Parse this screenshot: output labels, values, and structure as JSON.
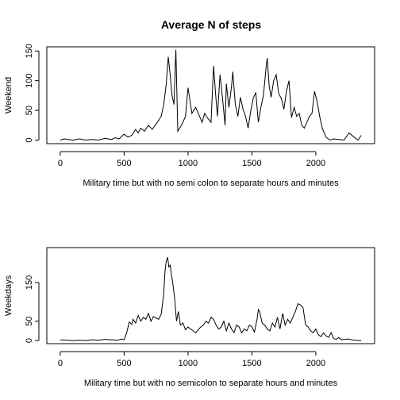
{
  "title": "Average N of steps",
  "chart_data": [
    {
      "type": "line",
      "ylabel": "Weekend",
      "xlabel": "Military time but with no semi colon to separate hours and minutes",
      "xlim": [
        -105,
        2460
      ],
      "ylim": [
        -6,
        157
      ],
      "x_ticks": [
        0,
        500,
        1000,
        1500,
        2000
      ],
      "y_ticks": [
        0,
        50,
        100,
        150
      ],
      "grid": false,
      "series": [
        {
          "x": [
            0,
            30,
            60,
            100,
            150,
            200,
            250,
            300,
            350,
            400,
            430,
            460,
            500,
            530,
            560,
            590,
            610,
            630,
            660,
            690,
            720,
            760,
            790,
            810,
            830,
            845,
            860,
            875,
            890,
            905,
            920,
            940,
            960,
            980,
            1000,
            1030,
            1060,
            1090,
            1110,
            1130,
            1150,
            1180,
            1200,
            1215,
            1230,
            1250,
            1270,
            1290,
            1300,
            1320,
            1340,
            1350,
            1370,
            1390,
            1410,
            1430,
            1450,
            1470,
            1490,
            1510,
            1530,
            1550,
            1570,
            1590,
            1610,
            1620,
            1635,
            1650,
            1670,
            1690,
            1710,
            1730,
            1750,
            1770,
            1790,
            1810,
            1830,
            1850,
            1870,
            1890,
            1910,
            1930,
            1950,
            1970,
            1990,
            2010,
            2030,
            2050,
            2080,
            2110,
            2140,
            2180,
            2220,
            2260,
            2300,
            2330,
            2355
          ],
          "y": [
            0,
            2,
            1,
            0,
            2,
            0,
            1,
            0,
            3,
            1,
            4,
            2,
            10,
            5,
            8,
            18,
            12,
            20,
            15,
            25,
            18,
            30,
            40,
            60,
            95,
            140,
            110,
            75,
            60,
            152,
            15,
            22,
            30,
            40,
            88,
            45,
            55,
            40,
            30,
            45,
            38,
            30,
            125,
            80,
            40,
            110,
            70,
            25,
            95,
            55,
            90,
            115,
            60,
            40,
            72,
            52,
            40,
            20,
            48,
            70,
            80,
            30,
            55,
            75,
            120,
            138,
            90,
            72,
            100,
            110,
            78,
            70,
            52,
            82,
            100,
            38,
            55,
            40,
            45,
            25,
            20,
            30,
            40,
            45,
            82,
            65,
            40,
            20,
            5,
            0,
            2,
            1,
            0,
            12,
            5,
            0,
            8
          ]
        }
      ]
    },
    {
      "type": "line",
      "ylabel": "Weekdays",
      "xlabel": "Military time but with no semicolon to separate hours and minutes",
      "xlim": [
        -105,
        2460
      ],
      "ylim": [
        -8,
        240
      ],
      "x_ticks": [
        0,
        500,
        1000,
        1500,
        2000
      ],
      "y_ticks": [
        0,
        50,
        150
      ],
      "grid": false,
      "series": [
        {
          "x": [
            0,
            50,
            100,
            150,
            200,
            250,
            300,
            350,
            400,
            450,
            480,
            500,
            520,
            540,
            560,
            570,
            590,
            610,
            630,
            650,
            670,
            690,
            710,
            730,
            750,
            770,
            790,
            810,
            820,
            830,
            840,
            850,
            860,
            870,
            880,
            895,
            910,
            925,
            940,
            960,
            980,
            1000,
            1020,
            1040,
            1060,
            1080,
            1100,
            1120,
            1140,
            1160,
            1180,
            1200,
            1220,
            1240,
            1260,
            1280,
            1300,
            1320,
            1340,
            1360,
            1380,
            1400,
            1420,
            1440,
            1460,
            1480,
            1500,
            1520,
            1540,
            1550,
            1560,
            1580,
            1600,
            1620,
            1640,
            1660,
            1680,
            1700,
            1720,
            1740,
            1760,
            1780,
            1800,
            1820,
            1840,
            1860,
            1880,
            1900,
            1920,
            1940,
            1960,
            1980,
            2000,
            2020,
            2040,
            2060,
            2080,
            2100,
            2120,
            2140,
            2160,
            2180,
            2200,
            2250,
            2300,
            2355
          ],
          "y": [
            2,
            1,
            0,
            1,
            0,
            2,
            1,
            3,
            2,
            1,
            4,
            2,
            20,
            48,
            42,
            55,
            45,
            65,
            50,
            60,
            55,
            70,
            50,
            62,
            58,
            55,
            68,
            120,
            180,
            205,
            215,
            190,
            195,
            170,
            150,
            110,
            50,
            75,
            40,
            45,
            28,
            35,
            30,
            25,
            20,
            28,
            35,
            40,
            50,
            45,
            60,
            55,
            40,
            30,
            35,
            50,
            25,
            45,
            30,
            20,
            40,
            35,
            20,
            30,
            25,
            40,
            35,
            22,
            55,
            80,
            75,
            45,
            40,
            30,
            25,
            45,
            35,
            60,
            30,
            70,
            40,
            55,
            45,
            60,
            75,
            95,
            92,
            85,
            40,
            35,
            25,
            20,
            30,
            15,
            10,
            20,
            12,
            8,
            20,
            5,
            3,
            8,
            2,
            4,
            1,
            0
          ]
        }
      ]
    }
  ]
}
